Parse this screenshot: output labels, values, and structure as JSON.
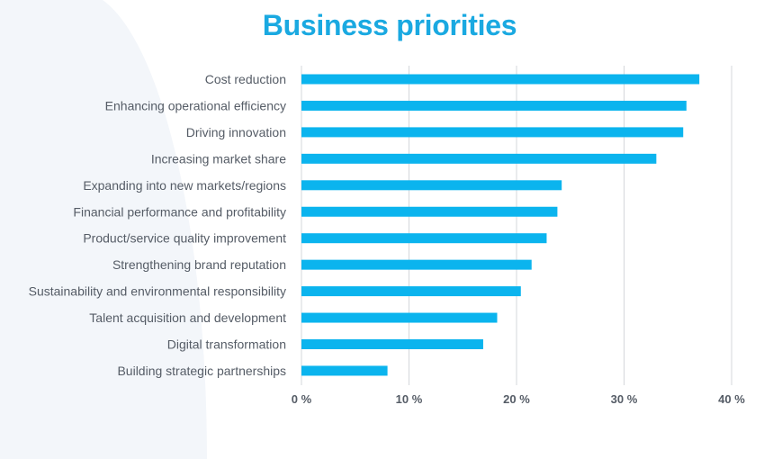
{
  "colors": {
    "bar": "#0bb4ee",
    "title": "#1aa9e1",
    "grid": "#d4d7db",
    "text": "#555c66"
  },
  "chart_data": {
    "type": "bar",
    "orientation": "horizontal",
    "title": "Business priorities",
    "categories": [
      "Cost reduction",
      "Enhancing operational efficiency",
      "Driving innovation",
      "Increasing market share",
      "Expanding into new markets/regions",
      "Financial performance and profitability",
      "Product/service quality improvement",
      "Strengthening brand reputation",
      "Sustainability and environmental responsibility",
      "Talent acquisition and development",
      "Digital transformation",
      "Building strategic partnerships"
    ],
    "values": [
      37.0,
      35.8,
      35.5,
      33.0,
      24.2,
      23.8,
      22.8,
      21.4,
      20.4,
      18.2,
      16.9,
      8.0
    ],
    "xlim": [
      0,
      40
    ],
    "ticks": [
      0,
      10,
      20,
      30,
      40
    ],
    "tick_labels": [
      "0 %",
      "10 %",
      "20 %",
      "30 %",
      "40 %"
    ],
    "grid": true
  }
}
